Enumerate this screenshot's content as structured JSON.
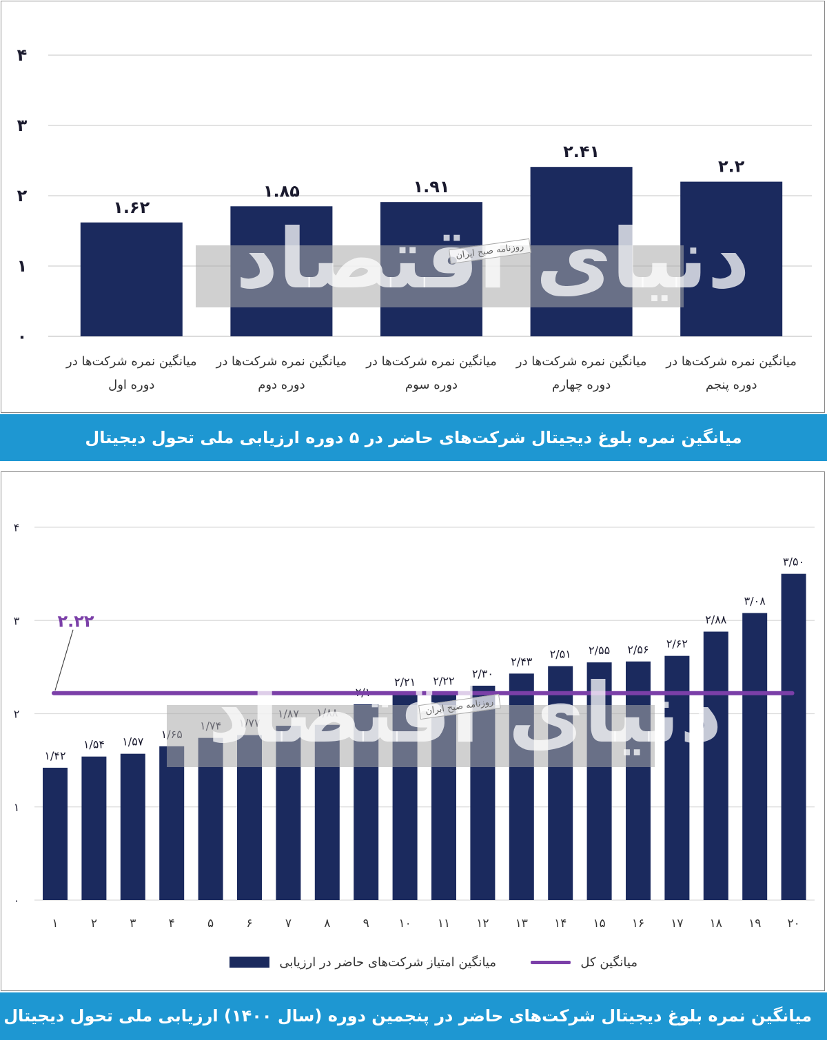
{
  "chart_data": [
    {
      "type": "bar",
      "title": "میانگین نمره بلوغ دیجیتال شرکت‌های حاضر در ۵ دوره ارزیابی ملی تحول دیجیتال",
      "ylim": [
        0,
        4
      ],
      "yticks": [
        "۰",
        "۱",
        "۲",
        "۳",
        "۴"
      ],
      "categories": [
        [
          "میانگین نمره شرکت‌ها در",
          "دوره اول"
        ],
        [
          "میانگین نمره شرکت‌ها در",
          "دوره دوم"
        ],
        [
          "میانگین نمره شرکت‌ها در",
          "دوره سوم"
        ],
        [
          "میانگین نمره شرکت‌ها در",
          "دوره چهارم"
        ],
        [
          "میانگین نمره شرکت‌ها در",
          "دوره پنجم"
        ]
      ],
      "values": [
        1.62,
        1.85,
        1.91,
        2.41,
        2.2
      ],
      "value_labels": [
        "۱.۶۲",
        "۱.۸۵",
        "۱.۹۱",
        "۲.۴۱",
        "۲.۲"
      ],
      "bar_color": "#1b2a5e"
    },
    {
      "type": "bar",
      "title": "میانگین نمره بلوغ دیجیتال شرکت‌های حاضر در پنجمین دوره (سال ۱۴۰۰) ارزیابی ملی تحول دیجیتال",
      "ylim": [
        0,
        4
      ],
      "yticks": [
        "۰",
        "۱",
        "۲",
        "۳",
        "۴"
      ],
      "categories": [
        "۱",
        "۲",
        "۳",
        "۴",
        "۵",
        "۶",
        "۷",
        "۸",
        "۹",
        "۱۰",
        "۱۱",
        "۱۲",
        "۱۳",
        "۱۴",
        "۱۵",
        "۱۶",
        "۱۷",
        "۱۸",
        "۱۹",
        "۲۰"
      ],
      "values": [
        1.42,
        1.54,
        1.57,
        1.65,
        1.74,
        1.77,
        1.87,
        1.88,
        2.1,
        2.21,
        2.22,
        2.3,
        2.43,
        2.51,
        2.55,
        2.56,
        2.62,
        2.88,
        3.08,
        3.5
      ],
      "value_labels": [
        "۱/۴۲",
        "۱/۵۴",
        "۱/۵۷",
        "۱/۶۵",
        "۱/۷۴",
        "۱/۷۷",
        "۱/۸۷",
        "۱/۸۸",
        "۲/۱۰",
        "۲/۲۱",
        "۲/۲۲",
        "۲/۳۰",
        "۲/۴۳",
        "۲/۵۱",
        "۲/۵۵",
        "۲/۵۶",
        "۲/۶۲",
        "۲/۸۸",
        "۳/۰۸",
        "۳/۵۰"
      ],
      "bar_color": "#1b2a5e",
      "average_line": {
        "value": 2.22,
        "label": "۲.۲۲",
        "color": "#7b3fa8"
      },
      "legend": [
        {
          "name": "میانگین امتیاز شرکت‌های حاضر در ارزیابی",
          "kind": "bar"
        },
        {
          "name": "میانگین کل",
          "kind": "line"
        }
      ]
    }
  ],
  "watermark": {
    "main": "دنیای اقتصاد",
    "tag": "روزنامه صبح ایران"
  }
}
